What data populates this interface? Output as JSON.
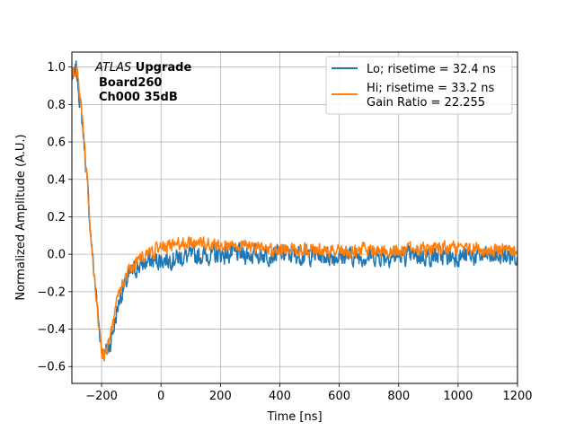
{
  "chart_data": {
    "type": "line",
    "title": "",
    "xlabel": "Time [ns]",
    "ylabel": "Normalized Amplitude (A.U.)",
    "xlim": [
      -300,
      1200
    ],
    "ylim": [
      -0.69,
      1.08
    ],
    "xticks": [
      -200,
      0,
      200,
      400,
      600,
      800,
      1000,
      1200
    ],
    "xtick_labels": [
      "−200",
      "0",
      "200",
      "400",
      "600",
      "800",
      "1000",
      "1200"
    ],
    "yticks": [
      -0.6,
      -0.4,
      -0.2,
      0.0,
      0.2,
      0.4,
      0.6,
      0.8,
      1.0
    ],
    "ytick_labels": [
      "−0.6",
      "−0.4",
      "−0.2",
      "0.0",
      "0.2",
      "0.4",
      "0.6",
      "0.8",
      "1.0"
    ],
    "grid": true,
    "legend_position": "top-right",
    "annotation": {
      "italic": "ATLAS",
      "bold_line1": " Upgrade",
      "line2": "Board260",
      "line3": "Ch000 35dB"
    },
    "series": [
      {
        "name": "Lo; risetime = 32.4 ns",
        "color": "#1f77b4",
        "noise_amplitude": 0.07,
        "x": [
          -290,
          -285,
          -280,
          -270,
          -260,
          -250,
          -240,
          -230,
          -220,
          -210,
          -200,
          -190,
          -180,
          -170,
          -160,
          -150,
          -140,
          -120,
          -100,
          -80,
          -60,
          -40,
          -20,
          0,
          50,
          100,
          200,
          300,
          400,
          600,
          800,
          1000,
          1200
        ],
        "values": [
          0.95,
          1.0,
          0.92,
          0.78,
          0.62,
          0.42,
          0.18,
          -0.02,
          -0.18,
          -0.36,
          -0.5,
          -0.53,
          -0.52,
          -0.47,
          -0.4,
          -0.32,
          -0.24,
          -0.16,
          -0.1,
          -0.07,
          -0.05,
          -0.04,
          -0.03,
          -0.03,
          -0.02,
          -0.01,
          0.0,
          0.0,
          0.0,
          -0.01,
          -0.01,
          -0.01,
          -0.01
        ]
      },
      {
        "name": "Hi; risetime = 33.2 ns\n Gain Ratio = 22.255",
        "color": "#ff7f0e",
        "noise_amplitude": 0.05,
        "x": [
          -290,
          -285,
          -280,
          -270,
          -260,
          -250,
          -240,
          -230,
          -220,
          -210,
          -200,
          -190,
          -180,
          -170,
          -160,
          -150,
          -140,
          -120,
          -100,
          -80,
          -60,
          -40,
          -20,
          0,
          50,
          100,
          200,
          300,
          400,
          600,
          800,
          1000,
          1200
        ],
        "values": [
          0.97,
          1.0,
          0.93,
          0.8,
          0.63,
          0.43,
          0.18,
          -0.02,
          -0.2,
          -0.38,
          -0.52,
          -0.54,
          -0.5,
          -0.44,
          -0.36,
          -0.27,
          -0.2,
          -0.12,
          -0.07,
          -0.03,
          -0.01,
          0.0,
          0.02,
          0.03,
          0.05,
          0.06,
          0.05,
          0.04,
          0.03,
          0.02,
          0.02,
          0.03,
          0.02
        ]
      }
    ]
  }
}
